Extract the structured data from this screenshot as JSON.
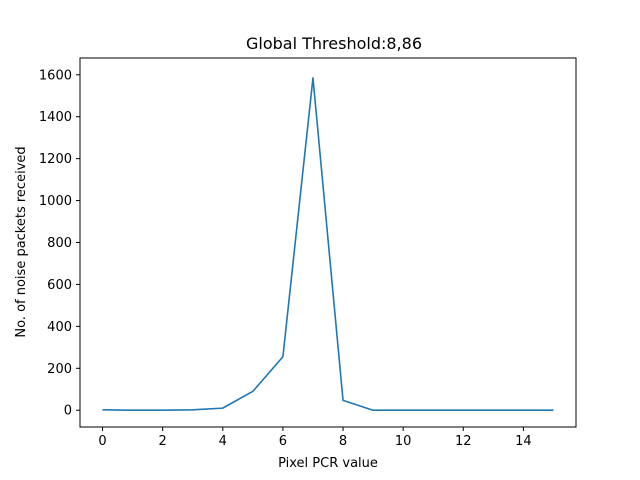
{
  "chart_data": {
    "type": "line",
    "title": "Global Threshold:8,86",
    "xlabel": "Pixel PCR value",
    "ylabel": "No. of noise packets received",
    "xlim": [
      -0.75,
      15.75
    ],
    "ylim": [
      -80,
      1680
    ],
    "xticks": [
      0,
      2,
      4,
      6,
      8,
      10,
      12,
      14
    ],
    "yticks": [
      0,
      200,
      400,
      600,
      800,
      1000,
      1200,
      1400,
      1600
    ],
    "grid": false,
    "series": [
      {
        "color": "#1f77b4",
        "x": [
          0,
          1,
          2,
          3,
          4,
          5,
          6,
          7,
          8,
          9,
          10,
          11,
          12,
          13,
          14,
          15
        ],
        "values": [
          2,
          0,
          0,
          2,
          10,
          90,
          255,
          1585,
          47,
          0,
          0,
          0,
          0,
          0,
          0,
          0
        ]
      }
    ]
  }
}
